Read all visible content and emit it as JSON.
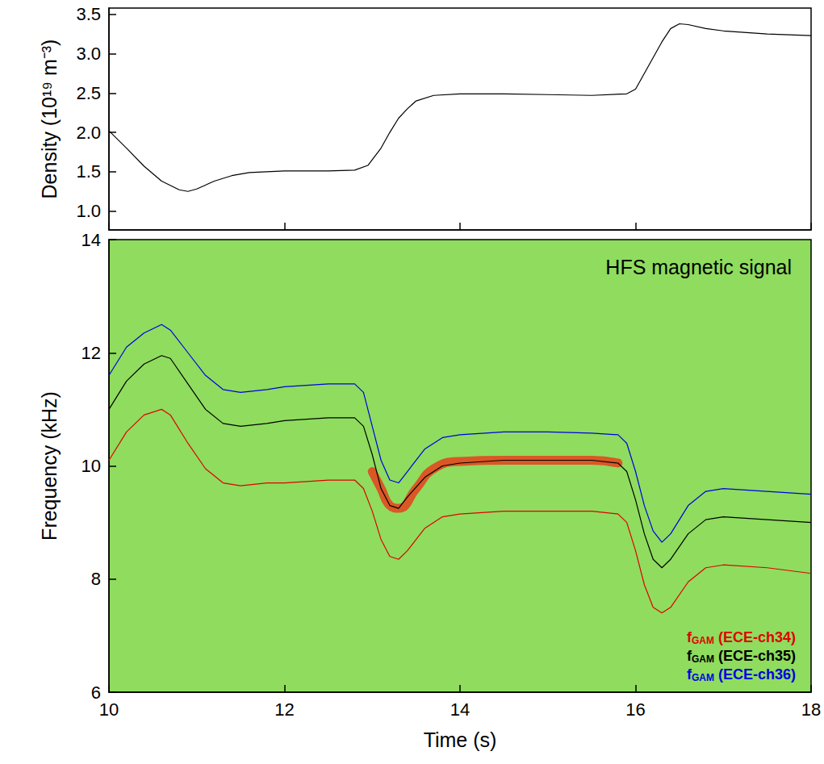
{
  "chart_data": [
    {
      "type": "line",
      "ylabel": "Density (10¹⁹ m⁻³)",
      "xlim": [
        10,
        18
      ],
      "xticks": [
        10,
        12,
        14,
        16,
        18
      ],
      "tick_labels": "y",
      "ylim": [
        0.76,
        3.58
      ],
      "yticks": [
        {
          "value": 1,
          "label": "1.0"
        },
        1.5,
        {
          "value": 2,
          "label": "2.0"
        },
        2.5,
        {
          "value": 3,
          "label": "3.0"
        },
        3.5
      ],
      "grid": false,
      "x": [
        10.0,
        10.2,
        10.4,
        10.6,
        10.8,
        10.9,
        11.0,
        11.2,
        11.4,
        11.6,
        11.8,
        12.0,
        12.5,
        12.8,
        12.95,
        13.1,
        13.2,
        13.3,
        13.4,
        13.5,
        13.7,
        14.0,
        14.5,
        15.0,
        15.5,
        15.9,
        16.0,
        16.1,
        16.2,
        16.3,
        16.4,
        16.5,
        16.6,
        16.8,
        17.0,
        17.5,
        18.0
      ],
      "series": [
        {
          "color": "#000000",
          "values": [
            2.02,
            1.8,
            1.57,
            1.38,
            1.27,
            1.25,
            1.28,
            1.38,
            1.45,
            1.49,
            1.5,
            1.51,
            1.51,
            1.52,
            1.58,
            1.8,
            2.0,
            2.18,
            2.3,
            2.4,
            2.47,
            2.49,
            2.49,
            2.48,
            2.47,
            2.49,
            2.55,
            2.75,
            2.95,
            3.15,
            3.32,
            3.38,
            3.37,
            3.32,
            3.29,
            3.25,
            3.23
          ]
        }
      ]
    },
    {
      "type": "line",
      "annotation": "HFS magnetic signal",
      "xlabel": "Time (s)",
      "ylabel": "Frequency (kHz)",
      "xlim": [
        10,
        18
      ],
      "xticks": [
        10,
        12,
        14,
        16,
        18
      ],
      "ylim": [
        6,
        14
      ],
      "yticks": [
        6,
        8,
        10,
        12,
        14
      ],
      "grid": false,
      "legend": "lower right",
      "x": [
        10.0,
        10.2,
        10.4,
        10.6,
        10.7,
        10.9,
        11.1,
        11.3,
        11.5,
        11.8,
        12.0,
        12.5,
        12.8,
        12.9,
        13.0,
        13.1,
        13.2,
        13.3,
        13.4,
        13.6,
        13.8,
        14.0,
        14.5,
        15.0,
        15.5,
        15.8,
        15.9,
        16.0,
        16.1,
        16.2,
        16.3,
        16.4,
        16.6,
        16.8,
        17.0,
        17.5,
        18.0
      ],
      "series": [
        {
          "name": "fGAM (ECE-ch34)",
          "color": "#e00000",
          "values": [
            10.1,
            10.6,
            10.9,
            11.0,
            10.9,
            10.4,
            9.95,
            9.7,
            9.65,
            9.7,
            9.7,
            9.75,
            9.75,
            9.6,
            9.2,
            8.7,
            8.4,
            8.35,
            8.5,
            8.9,
            9.1,
            9.15,
            9.2,
            9.2,
            9.2,
            9.15,
            9.0,
            8.5,
            7.9,
            7.5,
            7.4,
            7.5,
            7.95,
            8.2,
            8.25,
            8.2,
            8.1
          ]
        },
        {
          "name": "fGAM (ECE-ch35)",
          "color": "#000000",
          "values": [
            11.0,
            11.5,
            11.8,
            11.95,
            11.9,
            11.45,
            11.0,
            10.75,
            10.7,
            10.75,
            10.8,
            10.85,
            10.85,
            10.7,
            10.2,
            9.6,
            9.3,
            9.25,
            9.45,
            9.8,
            10.0,
            10.05,
            10.1,
            10.1,
            10.1,
            10.05,
            9.9,
            9.4,
            8.8,
            8.35,
            8.2,
            8.35,
            8.8,
            9.05,
            9.1,
            9.05,
            9.0
          ]
        },
        {
          "name": "fGAM (ECE-ch36)",
          "color": "#0000e0",
          "values": [
            11.6,
            12.1,
            12.35,
            12.5,
            12.4,
            12.0,
            11.6,
            11.35,
            11.3,
            11.35,
            11.4,
            11.45,
            11.45,
            11.3,
            10.7,
            10.1,
            9.75,
            9.7,
            9.9,
            10.3,
            10.5,
            10.55,
            10.6,
            10.6,
            10.58,
            10.55,
            10.4,
            9.9,
            9.3,
            8.85,
            8.65,
            8.8,
            9.3,
            9.55,
            9.6,
            9.55,
            9.5
          ]
        }
      ],
      "spectral_peak": {
        "color": "#e8401c",
        "x": [
          13.0,
          13.1,
          13.2,
          13.3,
          13.5,
          13.7,
          14.0,
          14.5,
          15.0,
          15.5,
          15.8
        ],
        "y": [
          9.9,
          9.6,
          9.3,
          9.25,
          9.6,
          9.95,
          10.08,
          10.1,
          10.1,
          10.1,
          10.05
        ]
      }
    }
  ]
}
